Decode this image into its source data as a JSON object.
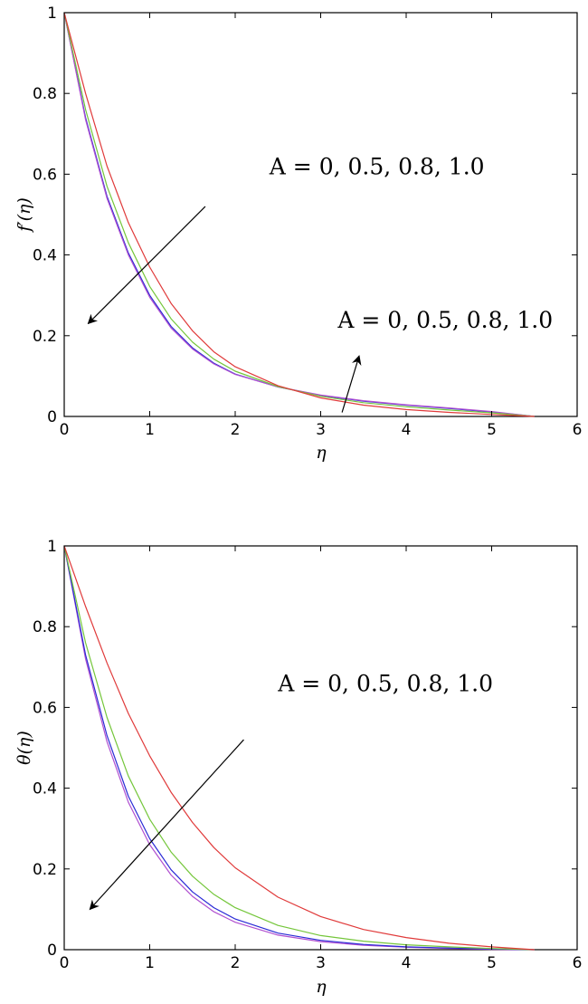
{
  "chart_data": [
    {
      "type": "line",
      "title": "",
      "xlabel": "η",
      "ylabel": "f′(η)",
      "xlim": [
        0,
        6
      ],
      "ylim": [
        0,
        1
      ],
      "xticks": [
        "0",
        "1",
        "2",
        "3",
        "4",
        "5",
        "6"
      ],
      "yticks": [
        "0",
        "0.2",
        "0.4",
        "0.6",
        "0.8",
        "1"
      ],
      "grid": false,
      "series_colors": [
        "#2a2ad6",
        "#b04fd0",
        "#74c63a",
        "#e03a3a"
      ],
      "series": [
        {
          "x": [
            0,
            0.25,
            0.5,
            0.75,
            1.0,
            1.25,
            1.5,
            1.75,
            2.0,
            2.5,
            3.0,
            3.5,
            4.0,
            4.5,
            5.0,
            5.5
          ],
          "values": [
            1.0,
            0.74,
            0.545,
            0.405,
            0.3,
            0.223,
            0.17,
            0.132,
            0.105,
            0.073,
            0.052,
            0.038,
            0.028,
            0.02,
            0.011,
            0.0
          ]
        },
        {
          "x": [
            0,
            0.25,
            0.5,
            0.75,
            1.0,
            1.25,
            1.5,
            1.75,
            2.0,
            2.5,
            3.0,
            3.5,
            4.0,
            4.5,
            5.0,
            5.5
          ],
          "values": [
            1.0,
            0.735,
            0.54,
            0.4,
            0.295,
            0.219,
            0.167,
            0.13,
            0.104,
            0.073,
            0.053,
            0.039,
            0.029,
            0.021,
            0.012,
            0.0
          ]
        },
        {
          "x": [
            0,
            0.25,
            0.5,
            0.75,
            1.0,
            1.25,
            1.5,
            1.75,
            2.0,
            2.5,
            3.0,
            3.5,
            4.0,
            4.5,
            5.0,
            5.5
          ],
          "values": [
            1.0,
            0.76,
            0.57,
            0.43,
            0.322,
            0.242,
            0.184,
            0.142,
            0.112,
            0.074,
            0.05,
            0.034,
            0.024,
            0.016,
            0.009,
            0.0
          ]
        },
        {
          "x": [
            0,
            0.25,
            0.5,
            0.75,
            1.0,
            1.25,
            1.5,
            1.75,
            2.0,
            2.5,
            3.0,
            3.5,
            4.0,
            4.5,
            5.0,
            5.5
          ],
          "values": [
            1.0,
            0.8,
            0.62,
            0.48,
            0.37,
            0.28,
            0.212,
            0.16,
            0.123,
            0.076,
            0.046,
            0.028,
            0.017,
            0.01,
            0.005,
            0.0
          ]
        }
      ],
      "annotations": [
        {
          "text": "A = 0, 0.5, 0.8, 1.0",
          "x": 2.4,
          "y": 0.6
        },
        {
          "text": "A = 0, 0.5, 0.8, 1.0",
          "x": 3.2,
          "y": 0.22
        }
      ],
      "arrows": [
        {
          "from": [
            1.65,
            0.52
          ],
          "to": [
            0.28,
            0.23
          ]
        },
        {
          "from": [
            3.25,
            0.01
          ],
          "to": [
            3.45,
            0.15
          ]
        }
      ]
    },
    {
      "type": "line",
      "title": "",
      "xlabel": "η",
      "ylabel": "θ(η)",
      "xlim": [
        0,
        6
      ],
      "ylim": [
        0,
        1
      ],
      "xticks": [
        "0",
        "1",
        "2",
        "3",
        "4",
        "5",
        "6"
      ],
      "yticks": [
        "0",
        "0.2",
        "0.4",
        "0.6",
        "0.8",
        "1"
      ],
      "grid": false,
      "series_colors": [
        "#b04fd0",
        "#2a2ad6",
        "#74c63a",
        "#e03a3a"
      ],
      "series": [
        {
          "x": [
            0,
            0.25,
            0.5,
            0.75,
            1.0,
            1.25,
            1.5,
            1.75,
            2.0,
            2.5,
            3.0,
            3.5,
            4.0,
            4.5,
            5.0,
            5.5
          ],
          "values": [
            1.0,
            0.72,
            0.515,
            0.365,
            0.26,
            0.185,
            0.132,
            0.094,
            0.068,
            0.036,
            0.02,
            0.011,
            0.006,
            0.003,
            0.001,
            0.0
          ]
        },
        {
          "x": [
            0,
            0.25,
            0.5,
            0.75,
            1.0,
            1.25,
            1.5,
            1.75,
            2.0,
            2.5,
            3.0,
            3.5,
            4.0,
            4.5,
            5.0,
            5.5
          ],
          "values": [
            1.0,
            0.73,
            0.53,
            0.38,
            0.275,
            0.198,
            0.143,
            0.104,
            0.076,
            0.041,
            0.023,
            0.013,
            0.007,
            0.004,
            0.002,
            0.0
          ]
        },
        {
          "x": [
            0,
            0.25,
            0.5,
            0.75,
            1.0,
            1.25,
            1.5,
            1.75,
            2.0,
            2.5,
            3.0,
            3.5,
            4.0,
            4.5,
            5.0,
            5.5
          ],
          "values": [
            1.0,
            0.76,
            0.575,
            0.43,
            0.323,
            0.242,
            0.182,
            0.137,
            0.104,
            0.06,
            0.035,
            0.021,
            0.012,
            0.007,
            0.003,
            0.0
          ]
        },
        {
          "x": [
            0,
            0.25,
            0.5,
            0.75,
            1.0,
            1.25,
            1.5,
            1.75,
            2.0,
            2.5,
            3.0,
            3.5,
            4.0,
            4.5,
            5.0,
            5.5
          ],
          "values": [
            1.0,
            0.85,
            0.71,
            0.585,
            0.48,
            0.39,
            0.315,
            0.253,
            0.203,
            0.13,
            0.082,
            0.05,
            0.03,
            0.016,
            0.007,
            0.0
          ]
        }
      ],
      "annotations": [
        {
          "text": "A = 0, 0.5, 0.8, 1.0",
          "x": 2.5,
          "y": 0.64
        }
      ],
      "arrows": [
        {
          "from": [
            2.1,
            0.52
          ],
          "to": [
            0.3,
            0.1
          ]
        }
      ]
    }
  ]
}
